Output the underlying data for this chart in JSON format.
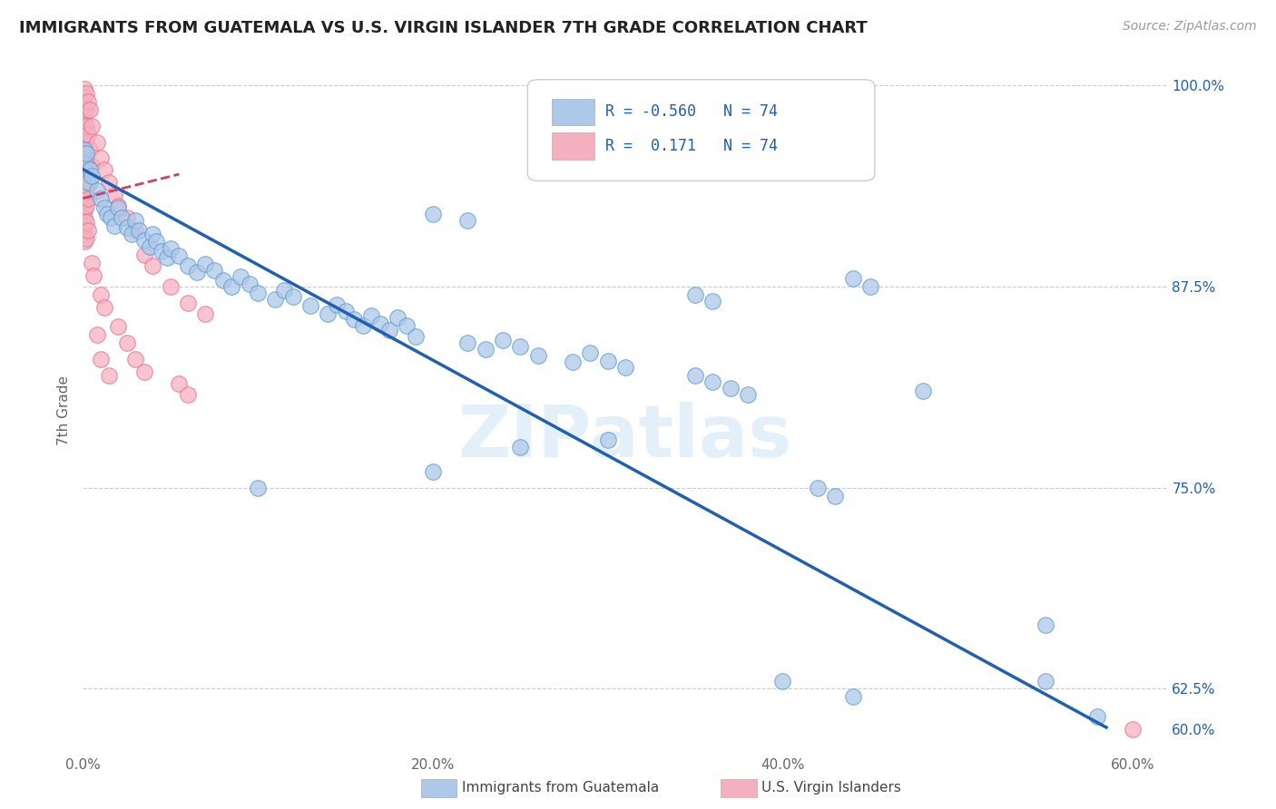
{
  "title": "IMMIGRANTS FROM GUATEMALA VS U.S. VIRGIN ISLANDER 7TH GRADE CORRELATION CHART",
  "source": "Source: ZipAtlas.com",
  "ylabel": "7th Grade",
  "xlim": [
    0.0,
    0.62
  ],
  "ylim": [
    0.588,
    1.008
  ],
  "xtick_labels": [
    "0.0%",
    "",
    "20.0%",
    "",
    "40.0%",
    "",
    "60.0%"
  ],
  "xtick_vals": [
    0.0,
    0.1,
    0.2,
    0.3,
    0.4,
    0.5,
    0.6
  ],
  "ytick_labels": [
    "100.0%",
    "87.5%",
    "75.0%",
    "62.5%",
    "60.0%"
  ],
  "ytick_vals": [
    1.0,
    0.875,
    0.75,
    0.625,
    0.6
  ],
  "ytick_grid": [
    1.0,
    0.875,
    0.75,
    0.625
  ],
  "blue_R": "-0.560",
  "pink_R": "0.171",
  "N": "74",
  "blue_color": "#adc8e8",
  "pink_color": "#f5b0c0",
  "blue_edge_color": "#5a9ad4",
  "pink_edge_color": "#e87090",
  "blue_line_color": "#2060b0",
  "pink_line_color": "#d04060",
  "legend_blue_color": "#adc8e8",
  "legend_pink_color": "#f5b0c0",
  "watermark": "ZIPatlas",
  "blue_scatter": [
    [
      0.001,
      0.96
    ],
    [
      0.001,
      0.952
    ],
    [
      0.002,
      0.958
    ],
    [
      0.003,
      0.94
    ],
    [
      0.004,
      0.948
    ],
    [
      0.005,
      0.944
    ],
    [
      0.008,
      0.935
    ],
    [
      0.01,
      0.93
    ],
    [
      0.012,
      0.924
    ],
    [
      0.014,
      0.92
    ],
    [
      0.016,
      0.918
    ],
    [
      0.018,
      0.913
    ],
    [
      0.02,
      0.924
    ],
    [
      0.022,
      0.918
    ],
    [
      0.025,
      0.912
    ],
    [
      0.028,
      0.908
    ],
    [
      0.03,
      0.916
    ],
    [
      0.032,
      0.91
    ],
    [
      0.035,
      0.904
    ],
    [
      0.038,
      0.9
    ],
    [
      0.04,
      0.908
    ],
    [
      0.042,
      0.903
    ],
    [
      0.045,
      0.897
    ],
    [
      0.048,
      0.893
    ],
    [
      0.05,
      0.899
    ],
    [
      0.055,
      0.894
    ],
    [
      0.06,
      0.888
    ],
    [
      0.065,
      0.884
    ],
    [
      0.07,
      0.889
    ],
    [
      0.075,
      0.885
    ],
    [
      0.08,
      0.879
    ],
    [
      0.085,
      0.875
    ],
    [
      0.09,
      0.881
    ],
    [
      0.095,
      0.877
    ],
    [
      0.1,
      0.871
    ],
    [
      0.11,
      0.867
    ],
    [
      0.115,
      0.873
    ],
    [
      0.12,
      0.869
    ],
    [
      0.13,
      0.863
    ],
    [
      0.14,
      0.858
    ],
    [
      0.145,
      0.864
    ],
    [
      0.15,
      0.86
    ],
    [
      0.155,
      0.855
    ],
    [
      0.16,
      0.851
    ],
    [
      0.165,
      0.857
    ],
    [
      0.17,
      0.852
    ],
    [
      0.175,
      0.848
    ],
    [
      0.18,
      0.856
    ],
    [
      0.185,
      0.851
    ],
    [
      0.19,
      0.844
    ],
    [
      0.22,
      0.84
    ],
    [
      0.23,
      0.836
    ],
    [
      0.24,
      0.842
    ],
    [
      0.25,
      0.838
    ],
    [
      0.26,
      0.832
    ],
    [
      0.28,
      0.828
    ],
    [
      0.29,
      0.834
    ],
    [
      0.3,
      0.829
    ],
    [
      0.31,
      0.825
    ],
    [
      0.35,
      0.82
    ],
    [
      0.36,
      0.816
    ],
    [
      0.37,
      0.812
    ],
    [
      0.38,
      0.808
    ],
    [
      0.2,
      0.92
    ],
    [
      0.22,
      0.916
    ],
    [
      0.35,
      0.87
    ],
    [
      0.36,
      0.866
    ],
    [
      0.44,
      0.88
    ],
    [
      0.45,
      0.875
    ],
    [
      0.48,
      0.81
    ],
    [
      0.42,
      0.75
    ],
    [
      0.43,
      0.745
    ],
    [
      0.1,
      0.75
    ],
    [
      0.2,
      0.76
    ],
    [
      0.25,
      0.775
    ],
    [
      0.3,
      0.78
    ],
    [
      0.55,
      0.63
    ],
    [
      0.4,
      0.63
    ],
    [
      0.44,
      0.62
    ],
    [
      0.55,
      0.665
    ],
    [
      0.58,
      0.608
    ]
  ],
  "pink_scatter": [
    [
      0.001,
      0.998
    ],
    [
      0.001,
      0.993
    ],
    [
      0.001,
      0.988
    ],
    [
      0.001,
      0.983
    ],
    [
      0.001,
      0.978
    ],
    [
      0.001,
      0.973
    ],
    [
      0.001,
      0.968
    ],
    [
      0.001,
      0.963
    ],
    [
      0.001,
      0.958
    ],
    [
      0.001,
      0.953
    ],
    [
      0.001,
      0.948
    ],
    [
      0.001,
      0.943
    ],
    [
      0.001,
      0.938
    ],
    [
      0.001,
      0.933
    ],
    [
      0.001,
      0.928
    ],
    [
      0.001,
      0.923
    ],
    [
      0.001,
      0.918
    ],
    [
      0.001,
      0.913
    ],
    [
      0.001,
      0.908
    ],
    [
      0.001,
      0.903
    ],
    [
      0.002,
      0.995
    ],
    [
      0.002,
      0.985
    ],
    [
      0.002,
      0.975
    ],
    [
      0.002,
      0.965
    ],
    [
      0.002,
      0.955
    ],
    [
      0.002,
      0.945
    ],
    [
      0.002,
      0.935
    ],
    [
      0.002,
      0.925
    ],
    [
      0.002,
      0.915
    ],
    [
      0.002,
      0.905
    ],
    [
      0.003,
      0.99
    ],
    [
      0.003,
      0.97
    ],
    [
      0.003,
      0.95
    ],
    [
      0.003,
      0.93
    ],
    [
      0.003,
      0.91
    ],
    [
      0.004,
      0.985
    ],
    [
      0.004,
      0.96
    ],
    [
      0.004,
      0.94
    ],
    [
      0.005,
      0.975
    ],
    [
      0.005,
      0.95
    ],
    [
      0.008,
      0.965
    ],
    [
      0.01,
      0.955
    ],
    [
      0.012,
      0.948
    ],
    [
      0.015,
      0.94
    ],
    [
      0.018,
      0.932
    ],
    [
      0.02,
      0.925
    ],
    [
      0.025,
      0.918
    ],
    [
      0.03,
      0.91
    ],
    [
      0.035,
      0.895
    ],
    [
      0.04,
      0.888
    ],
    [
      0.05,
      0.875
    ],
    [
      0.06,
      0.865
    ],
    [
      0.07,
      0.858
    ],
    [
      0.005,
      0.89
    ],
    [
      0.006,
      0.882
    ],
    [
      0.01,
      0.87
    ],
    [
      0.012,
      0.862
    ],
    [
      0.02,
      0.85
    ],
    [
      0.025,
      0.84
    ],
    [
      0.03,
      0.83
    ],
    [
      0.035,
      0.822
    ],
    [
      0.055,
      0.815
    ],
    [
      0.06,
      0.808
    ],
    [
      0.01,
      0.83
    ],
    [
      0.015,
      0.82
    ],
    [
      0.008,
      0.845
    ],
    [
      0.6,
      0.6
    ]
  ],
  "blue_trendline": [
    [
      0.0,
      0.948
    ],
    [
      0.585,
      0.601
    ]
  ],
  "pink_trendline": [
    [
      0.0,
      0.93
    ],
    [
      0.055,
      0.945
    ]
  ]
}
